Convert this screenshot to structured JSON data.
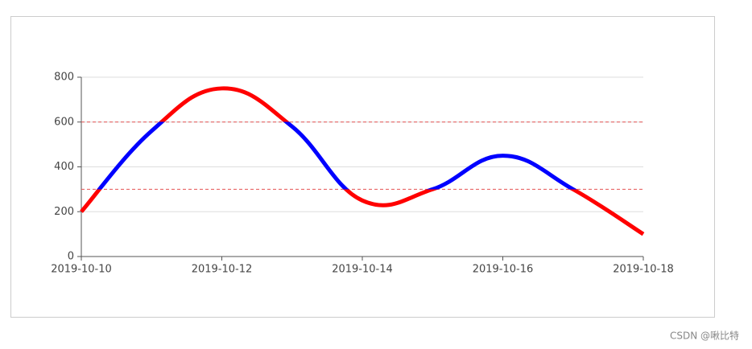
{
  "chart_data": {
    "type": "line",
    "categories": [
      "2019-10-10",
      null,
      "2019-10-12",
      null,
      "2019-10-14",
      null,
      "2019-10-16",
      null,
      "2019-10-18"
    ],
    "series": [
      {
        "values": [
          200,
          560,
          750,
          580,
          250,
          300,
          450,
          300,
          100
        ]
      }
    ],
    "ylim": [
      0,
      800
    ],
    "yticks": [
      0,
      200,
      400,
      600,
      800
    ],
    "grid": true,
    "visual_pieces": [
      {
        "gt": 600,
        "color": "#ff0000"
      },
      {
        "gt": 300,
        "lte": 600,
        "color": "#0000ff"
      },
      {
        "lte": 300,
        "color": "#ff0000"
      }
    ],
    "mark_lines": [
      {
        "value": 300,
        "color": "#e55353"
      },
      {
        "value": 600,
        "color": "#e55353"
      }
    ]
  },
  "watermark": "CSDN @啾比特"
}
